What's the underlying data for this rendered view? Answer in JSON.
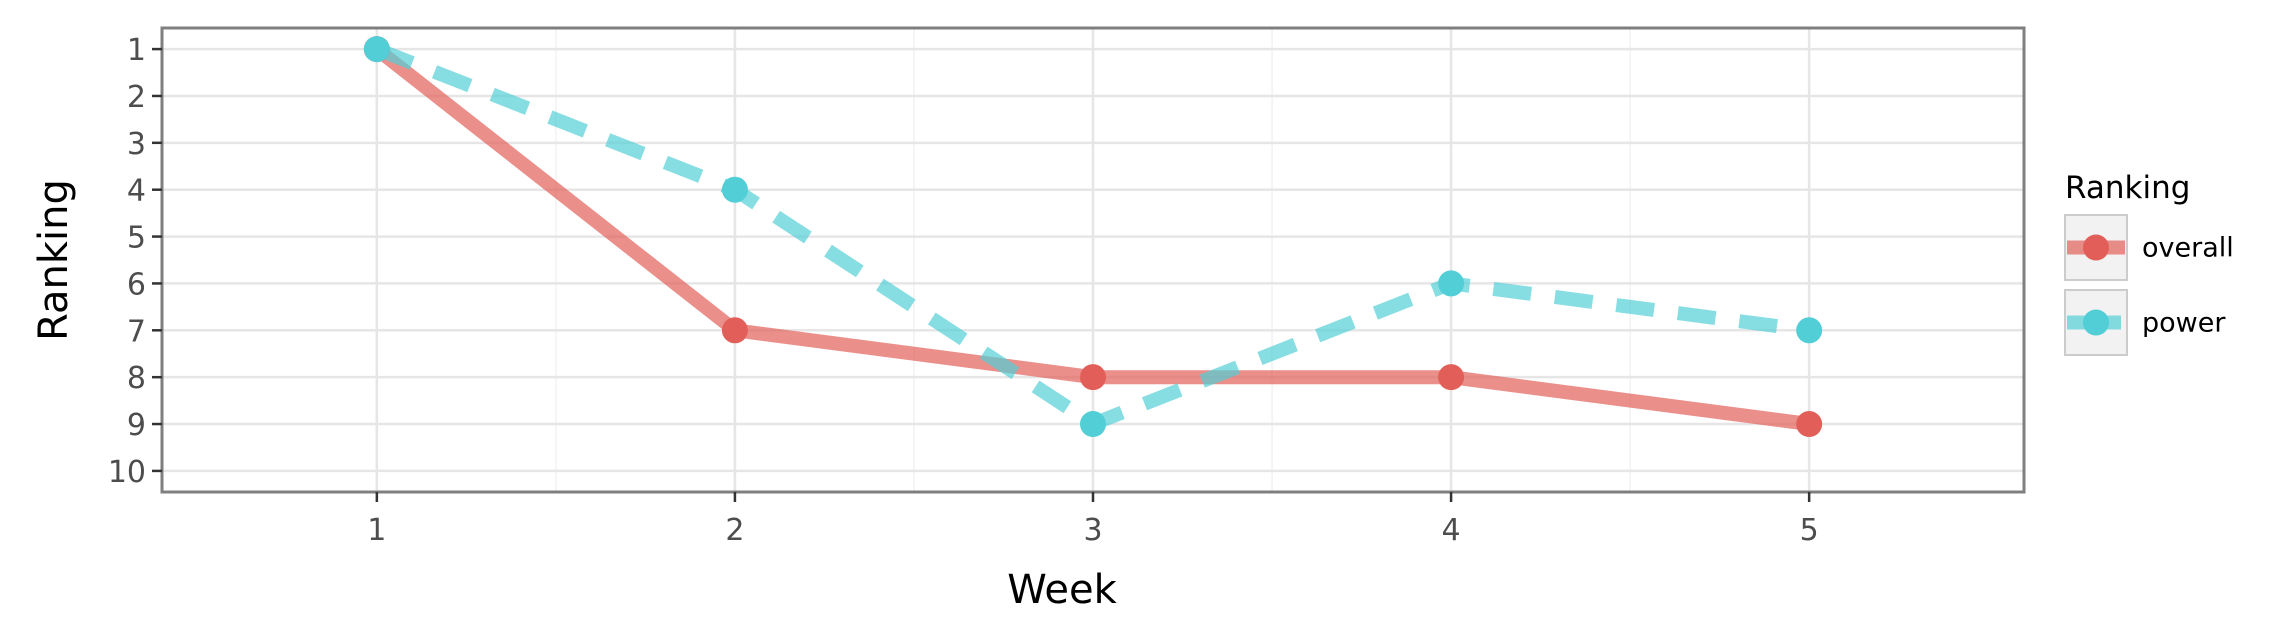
{
  "chart_data": {
    "type": "line",
    "xlabel": "Week",
    "ylabel": "Ranking",
    "x": [
      1,
      2,
      3,
      4,
      5
    ],
    "xlim": [
      0.4,
      5.6
    ],
    "ylim": [
      10.45,
      0.55
    ],
    "y_reversed": true,
    "x_ticks": [
      "1",
      "2",
      "3",
      "4",
      "5"
    ],
    "y_ticks": [
      "1",
      "2",
      "3",
      "4",
      "5",
      "6",
      "7",
      "8",
      "9",
      "10"
    ],
    "grid": true,
    "legend": {
      "title": "Ranking",
      "placement": "right"
    },
    "series": [
      {
        "name": "overall",
        "values": [
          1,
          7,
          8,
          8,
          9
        ],
        "color": "#e15f58",
        "line_style": "solid"
      },
      {
        "name": "power",
        "values": [
          1,
          4,
          9,
          6,
          7
        ],
        "color": "#52ced6",
        "line_style": "dashed"
      }
    ]
  }
}
